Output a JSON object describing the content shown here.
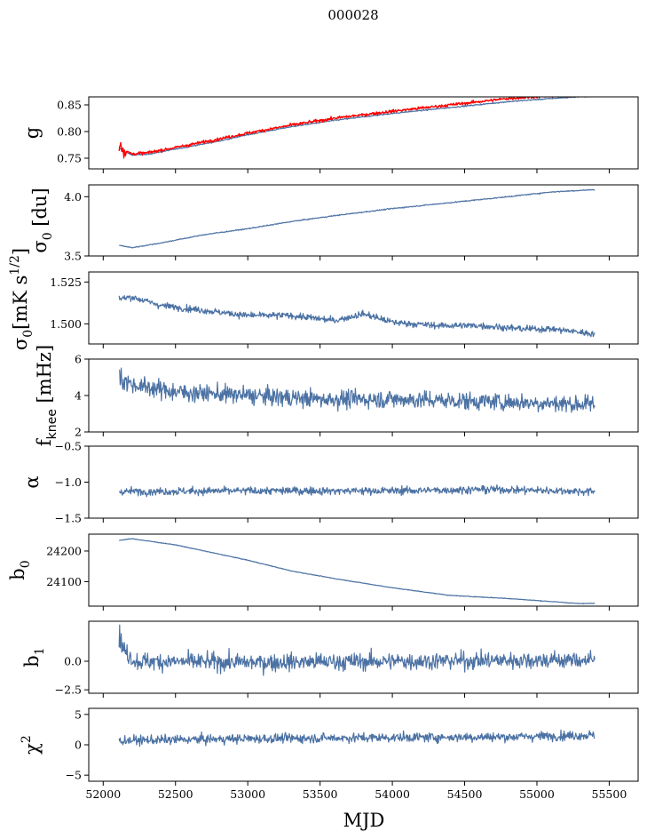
{
  "figure": {
    "suptitle": "000028",
    "xlabel": "MJD"
  },
  "colors": {
    "series": "#4c72a4",
    "overlay": "#ff0000",
    "axes": "#000000"
  },
  "x_axis": {
    "range": [
      51900,
      55700
    ],
    "ticks": [
      52000,
      52500,
      53000,
      53500,
      54000,
      54500,
      55000,
      55500
    ],
    "tick_labels": [
      "52000",
      "52500",
      "53000",
      "53500",
      "54000",
      "54500",
      "55000",
      "55500"
    ]
  },
  "chart_data": [
    {
      "id": "g",
      "type": "line",
      "ylabel": "g",
      "ylim": [
        0.73,
        0.865
      ],
      "yticks": [
        0.75,
        0.8,
        0.85
      ],
      "ytick_labels": [
        "0.75",
        "0.80",
        "0.85"
      ],
      "series": [
        {
          "kind": "blue",
          "noise": 0.001,
          "x": [
            52110,
            52150,
            52200,
            52300,
            52500,
            52800,
            53000,
            53300,
            53600,
            54000,
            54400,
            54800,
            55100,
            55400
          ],
          "y": [
            0.769,
            0.762,
            0.756,
            0.757,
            0.767,
            0.782,
            0.794,
            0.809,
            0.821,
            0.834,
            0.845,
            0.856,
            0.862,
            0.867
          ]
        },
        {
          "kind": "red",
          "noise": 0.0025,
          "x": [
            52110,
            52150,
            52200,
            52300,
            52500,
            52800,
            53000,
            53300,
            53600,
            54000,
            54400,
            54800,
            55100,
            55400
          ],
          "y": [
            0.773,
            0.764,
            0.758,
            0.76,
            0.77,
            0.786,
            0.797,
            0.812,
            0.825,
            0.838,
            0.85,
            0.862,
            0.867,
            0.87
          ]
        }
      ]
    },
    {
      "id": "sigma0-du",
      "type": "line",
      "ylabel": "σ0 [du]",
      "ylim": [
        3.5,
        4.1
      ],
      "yticks": [
        3.5,
        4.0
      ],
      "ytick_labels": [
        "3.5",
        "4.0"
      ],
      "series": [
        {
          "kind": "blue",
          "noise": 0.004,
          "x": [
            52110,
            52200,
            52400,
            52700,
            53000,
            53300,
            53600,
            54000,
            54400,
            54800,
            55100,
            55400
          ],
          "y": [
            3.59,
            3.57,
            3.61,
            3.68,
            3.73,
            3.79,
            3.84,
            3.9,
            3.95,
            4.0,
            4.04,
            4.06
          ]
        }
      ]
    },
    {
      "id": "sigma0-mk",
      "type": "line",
      "ylabel": "σ0[mK s1/2]",
      "ylim": [
        1.488,
        1.531
      ],
      "yticks": [
        1.5,
        1.525
      ],
      "ytick_labels": [
        "1.500",
        "1.525"
      ],
      "series": [
        {
          "kind": "blue",
          "noise": 0.0018,
          "x": [
            52110,
            52200,
            52400,
            52700,
            53000,
            53300,
            53600,
            53800,
            54000,
            54300,
            54600,
            54900,
            55100,
            55400
          ],
          "y": [
            1.515,
            1.516,
            1.511,
            1.508,
            1.505,
            1.505,
            1.502,
            1.506,
            1.501,
            1.499,
            1.499,
            1.497,
            1.497,
            1.494
          ]
        }
      ]
    },
    {
      "id": "fknee",
      "type": "line",
      "ylabel": "fknee [mHz]",
      "ylim": [
        2,
        6
      ],
      "yticks": [
        2,
        4,
        6
      ],
      "ytick_labels": [
        "2",
        "4",
        "6"
      ],
      "series": [
        {
          "kind": "blue",
          "noise": 0.45,
          "x": [
            52110,
            52200,
            52500,
            53000,
            53500,
            54000,
            54500,
            55000,
            55400
          ],
          "y": [
            5.0,
            4.6,
            4.2,
            4.0,
            3.8,
            3.8,
            3.7,
            3.6,
            3.5
          ]
        }
      ]
    },
    {
      "id": "alpha",
      "type": "line",
      "ylabel": "α",
      "ylim": [
        -1.5,
        -0.5
      ],
      "yticks": [
        -1.5,
        -1.0,
        -0.5
      ],
      "ytick_labels": [
        "−1.5",
        "−1.0",
        "−0.5"
      ],
      "series": [
        {
          "kind": "blue",
          "noise": 0.05,
          "x": [
            52110,
            53000,
            54000,
            54700,
            55400
          ],
          "y": [
            -1.13,
            -1.12,
            -1.12,
            -1.1,
            -1.13
          ]
        }
      ]
    },
    {
      "id": "b0",
      "type": "line",
      "ylabel": "b0",
      "ylim": [
        24020,
        24255
      ],
      "yticks": [
        24100,
        24200
      ],
      "ytick_labels": [
        "24100",
        "24200"
      ],
      "series": [
        {
          "kind": "blue",
          "noise": 1.0,
          "x": [
            52110,
            52200,
            52500,
            52800,
            53000,
            53300,
            53600,
            54000,
            54400,
            54800,
            55100,
            55300,
            55400
          ],
          "y": [
            24235,
            24240,
            24220,
            24190,
            24170,
            24135,
            24110,
            24080,
            24055,
            24045,
            24035,
            24028,
            24030
          ]
        }
      ]
    },
    {
      "id": "b1",
      "type": "line",
      "ylabel": "b1",
      "ylim": [
        -2.8,
        3.5
      ],
      "yticks": [
        -2.5,
        0.0
      ],
      "ytick_labels": [
        "−2.5",
        "0.0"
      ],
      "series": [
        {
          "kind": "blue",
          "noise": 0.7,
          "x": [
            52110,
            52140,
            52220,
            53000,
            54000,
            55000,
            55400
          ],
          "y": [
            2.5,
            1.0,
            0.0,
            -0.1,
            0.0,
            0.1,
            0.1
          ]
        }
      ]
    },
    {
      "id": "chi2",
      "type": "line",
      "ylabel": "χ2",
      "ylim": [
        -6,
        6
      ],
      "yticks": [
        -5,
        0,
        5
      ],
      "ytick_labels": [
        "−5",
        "0",
        "5"
      ],
      "series": [
        {
          "kind": "blue",
          "noise": 0.7,
          "x": [
            52110,
            53000,
            54000,
            54800,
            55400
          ],
          "y": [
            0.7,
            1.0,
            1.2,
            1.3,
            1.6
          ]
        }
      ]
    }
  ]
}
